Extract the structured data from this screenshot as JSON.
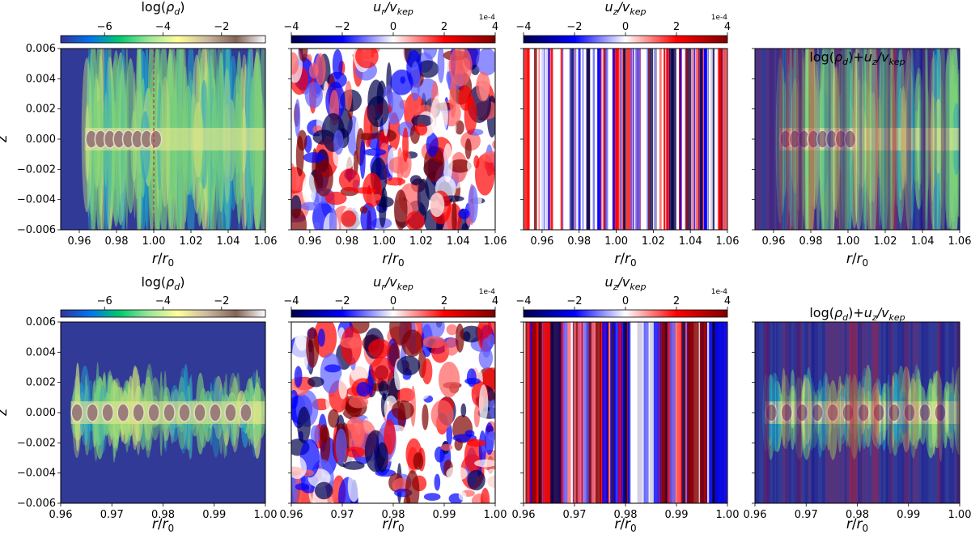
{
  "chart_data": [
    {
      "type": "heatmap",
      "row": 0,
      "col": 0,
      "field": "log_rho_d",
      "colormap": "terrain",
      "colorbar": {
        "label": "log(ρd)",
        "range": [
          -7.5,
          -0.5
        ],
        "ticks": [
          -6,
          -4,
          -2
        ]
      },
      "xlabel": "r/r0",
      "ylabel": "z",
      "xlim": [
        0.95,
        1.06
      ],
      "ylim": [
        -0.006,
        0.006
      ],
      "xticks": [
        "0.96",
        "0.98",
        "1.00",
        "1.02",
        "1.04",
        "1.06"
      ],
      "yticks": [
        "0.006",
        "0.004",
        "0.002",
        "0.000",
        "-0.002",
        "-0.004",
        "-0.006"
      ],
      "reference_line": {
        "x": 1.0,
        "style": "dashed",
        "color": "#d62728"
      }
    },
    {
      "type": "heatmap",
      "row": 0,
      "col": 1,
      "field": "u_r/v_kep",
      "colormap": "seismic",
      "colorbar": {
        "label": "ur/vkep",
        "range": [
          -4,
          4
        ],
        "ticks": [
          -4,
          -2,
          0,
          2,
          4
        ],
        "scale": "1e-4"
      },
      "xlabel": "r/r0",
      "xlim": [
        0.95,
        1.06
      ],
      "ylim": [
        -0.006,
        0.006
      ],
      "xticks": [
        "0.96",
        "0.98",
        "1.00",
        "1.02",
        "1.04",
        "1.06"
      ]
    },
    {
      "type": "heatmap",
      "row": 0,
      "col": 2,
      "field": "u_z/v_kep",
      "colormap": "seismic",
      "colorbar": {
        "label": "uz/vkep",
        "range": [
          -4,
          4
        ],
        "ticks": [
          -4,
          -2,
          0,
          2,
          4
        ],
        "scale": "1e-4"
      },
      "xlabel": "r/r0",
      "xlim": [
        0.95,
        1.06
      ],
      "ylim": [
        -0.006,
        0.006
      ],
      "xticks": [
        "0.96",
        "0.98",
        "1.00",
        "1.02",
        "1.04",
        "1.06"
      ]
    },
    {
      "type": "heatmap",
      "row": 0,
      "col": 3,
      "field": "log(ρd)+uz/vkep overlay",
      "title": "log(ρd)+uz/vkep",
      "xlabel": "r/r0",
      "xlim": [
        0.95,
        1.06
      ],
      "ylim": [
        -0.006,
        0.006
      ],
      "xticks": [
        "0.96",
        "0.98",
        "1.00",
        "1.02",
        "1.04",
        "1.06"
      ]
    },
    {
      "type": "heatmap",
      "row": 1,
      "col": 0,
      "field": "log_rho_d",
      "colormap": "terrain",
      "colorbar": {
        "label": "log(ρd)",
        "range": [
          -7.5,
          -0.5
        ],
        "ticks": [
          -6,
          -4,
          -2
        ]
      },
      "xlabel": "r/r0",
      "ylabel": "z",
      "xlim": [
        0.96,
        1.0
      ],
      "ylim": [
        -0.006,
        0.006
      ],
      "xticks": [
        "0.96",
        "0.97",
        "0.98",
        "0.99",
        "1.00"
      ],
      "yticks": [
        "0.006",
        "0.004",
        "0.002",
        "0.000",
        "-0.002",
        "-0.004",
        "-0.006"
      ]
    },
    {
      "type": "heatmap",
      "row": 1,
      "col": 1,
      "field": "u_r/v_kep",
      "colormap": "seismic",
      "colorbar": {
        "label": "ur/vkep",
        "range": [
          -4,
          4
        ],
        "ticks": [
          -4,
          -2,
          0,
          2,
          4
        ],
        "scale": "1e-4"
      },
      "xlabel": "r/r0",
      "xlim": [
        0.96,
        1.0
      ],
      "ylim": [
        -0.006,
        0.006
      ],
      "xticks": [
        "0.96",
        "0.97",
        "0.98",
        "0.99",
        "1.00"
      ]
    },
    {
      "type": "heatmap",
      "row": 1,
      "col": 2,
      "field": "u_z/v_kep",
      "colormap": "seismic",
      "colorbar": {
        "label": "uz/vkep",
        "range": [
          -4,
          4
        ],
        "ticks": [
          -4,
          -2,
          0,
          2,
          4
        ],
        "scale": "1e-4"
      },
      "xlabel": "r/r0",
      "xlim": [
        0.96,
        1.0
      ],
      "ylim": [
        -0.006,
        0.006
      ],
      "xticks": [
        "0.96",
        "0.97",
        "0.98",
        "0.99",
        "1.00"
      ]
    },
    {
      "type": "heatmap",
      "row": 1,
      "col": 3,
      "field": "log(ρd)+uz/vkep overlay",
      "title": "log(ρd)+uz/vkep",
      "xlabel": "r/r0",
      "xlim": [
        0.96,
        1.0
      ],
      "ylim": [
        -0.006,
        0.006
      ],
      "xticks": [
        "0.96",
        "0.97",
        "0.98",
        "0.99",
        "1.00"
      ]
    }
  ],
  "colormaps": {
    "terrain": [
      "#333399",
      "#0074f0",
      "#00c86e",
      "#99e699",
      "#ffff99",
      "#cbb99f",
      "#826357",
      "#ffffff"
    ],
    "seismic": [
      "#00004c",
      "#0000ff",
      "#ffffff",
      "#ff0000",
      "#7f0000"
    ],
    "panel_background": "#323a97"
  }
}
